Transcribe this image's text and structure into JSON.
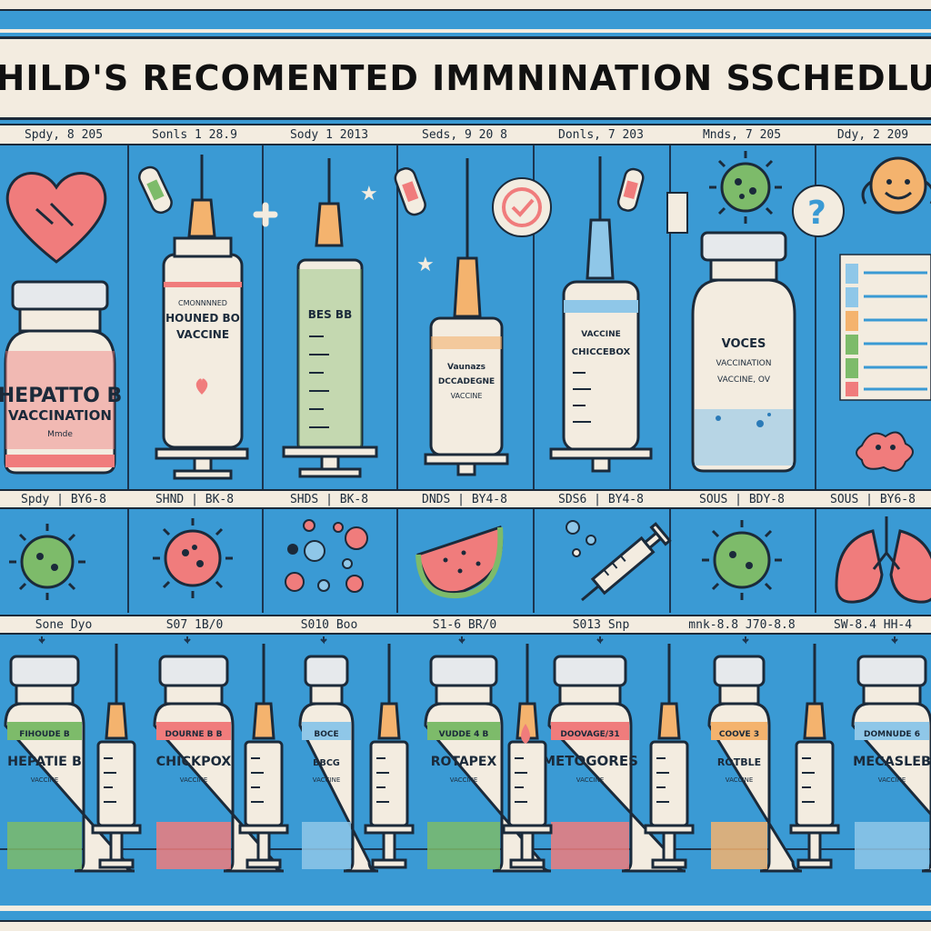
{
  "title": "CHILD'S RECOMENTED IMMNINATION SSCHEDLUE",
  "date_row": [
    "Spdy, 8 205",
    "Sonls 1 28.9",
    "Sody 1 2013",
    "Seds, 9 20 8",
    "Donls, 7 203",
    "Mnds, 7 205",
    "Ddy, 2 209"
  ],
  "mid_row": [
    "Spdy | BY6-8",
    "SHND | BK-8",
    "SHDS | BK-8",
    "DNDS | BY4-8",
    "SDS6 | BY4-8",
    "SOUS | BDY-8",
    "SOUS | BY6-8"
  ],
  "lower_row": [
    "Sone Dyo",
    "S07 1B/0",
    "S010 Boo",
    "S1-6 BR/0",
    "S013 Snp",
    "mnk-8.8 J70-8.8",
    "SW-8.4 HH-4"
  ],
  "top_vials": [
    {
      "title": "HEPATTO B",
      "sub": "VACCINATION",
      "small": "Mmde",
      "color": "#f07c7c"
    },
    {
      "title": "HOUNED BO",
      "sub": "VACCINE",
      "small": "CMONNNNED",
      "color": "#f07c7c"
    },
    {
      "title": "BES BB",
      "sub": "",
      "small": "",
      "color": "#7dbb6a"
    },
    {
      "title": "VACCINE",
      "sub": "DCCADEGNE",
      "small": "Vaunazs",
      "color": "#f4b36e"
    },
    {
      "title": "VACCINE",
      "sub": "CHICCEBOX",
      "small": "",
      "color": "#8fc7e8"
    },
    {
      "title": "VOCES",
      "sub": "VACCINATION",
      "small": "VACCINE, OV",
      "color": "#8fc7e8"
    }
  ],
  "bottom_vials": [
    {
      "top": "FIHOUDE B",
      "main": "HEPATIE B",
      "sub": "VACCINE",
      "color": "#7dbb6a"
    },
    {
      "top": "DOURNE B B",
      "main": "CHICKPOX",
      "sub": "VACCINE",
      "color": "#f07c7c"
    },
    {
      "top": "BOCE",
      "main": "BBCG",
      "sub": "VACCINE",
      "color": "#8fc7e8"
    },
    {
      "top": "VUDDE 4 B",
      "main": "ROTAPEX",
      "sub": "VACCINE",
      "color": "#7dbb6a"
    },
    {
      "top": "DOOVAGE/31",
      "main": "METOGORES",
      "sub": "VACCINE",
      "color": "#f07c7c"
    },
    {
      "top": "COOVE 3",
      "main": "ROTBLE",
      "sub": "VACCINE",
      "color": "#f4b36e"
    },
    {
      "top": "DOMNUDE 6",
      "main": "MECASLEB",
      "sub": "VACCINE",
      "color": "#8fc7e8"
    }
  ],
  "icons": [
    "heart-icon",
    "bandage-icon",
    "plus-icon",
    "star-icon",
    "check-badge-icon",
    "virus-icon",
    "question-icon",
    "smiley-face-icon",
    "germ-icon",
    "droplet-icon",
    "watermelon-icon",
    "lungs-icon",
    "syringe-icon",
    "vial-icon"
  ],
  "colors": {
    "background": "#3a9ad4",
    "paper": "#f3ece0",
    "ink": "#1b2a3a",
    "red": "#f07c7c",
    "green": "#7dbb6a",
    "orange": "#f4b36e",
    "blue": "#8fc7e8"
  }
}
